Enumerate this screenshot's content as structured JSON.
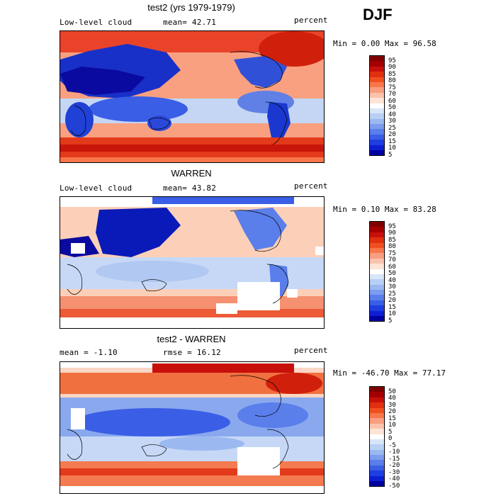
{
  "season": "DJF",
  "panels": [
    {
      "title": "test2 (yrs 1979-1979)",
      "variable": "Low-level cloud",
      "stat_left": "mean=  42.71",
      "units": "percent",
      "minmax": "Min =   0.00 Max =  96.58",
      "colorbar": {
        "colors": [
          "#7f0000",
          "#a50000",
          "#c8100a",
          "#e0300f",
          "#f05020",
          "#f7764a",
          "#f99e80",
          "#fcc3ac",
          "#fde4d6",
          "#ffffff",
          "#d8e6f8",
          "#b9d0f5",
          "#9bb8f0",
          "#7c9cee",
          "#5a7eea",
          "#3a5ee5",
          "#1f3ee0",
          "#0c1fd2",
          "#0000a0"
        ],
        "labels": [
          "95",
          "90",
          "85",
          "80",
          "75",
          "70",
          "60",
          "50",
          "40",
          "30",
          "25",
          "20",
          "15",
          "10",
          "5"
        ]
      }
    },
    {
      "title": "WARREN",
      "variable": "Low-level cloud",
      "stat_left": "mean=  43.82",
      "units": "percent",
      "minmax": "Min =   0.10 Max =  83.28",
      "colorbar": {
        "colors": [
          "#7f0000",
          "#a50000",
          "#c8100a",
          "#e0300f",
          "#f05020",
          "#f7764a",
          "#f99e80",
          "#fcc3ac",
          "#fde4d6",
          "#ffffff",
          "#d8e6f8",
          "#b9d0f5",
          "#9bb8f0",
          "#7c9cee",
          "#5a7eea",
          "#3a5ee5",
          "#1f3ee0",
          "#0c1fd2",
          "#0000a0"
        ],
        "labels": [
          "95",
          "90",
          "85",
          "80",
          "75",
          "70",
          "60",
          "50",
          "40",
          "30",
          "25",
          "20",
          "15",
          "10",
          "5"
        ]
      }
    },
    {
      "title": "test2 - WARREN",
      "stat_left": "mean =  -1.10",
      "stat_mid": "rmse =  16.12",
      "units": "percent",
      "minmax": "Min = -46.70 Max =  77.17",
      "colorbar": {
        "colors": [
          "#7f0000",
          "#a50000",
          "#c8100a",
          "#e0300f",
          "#f05020",
          "#f7764a",
          "#f99e80",
          "#fcc3ac",
          "#fde4d6",
          "#ffffff",
          "#d8e6f8",
          "#b9d0f5",
          "#9bb8f0",
          "#7c9cee",
          "#5a7eea",
          "#3a5ee5",
          "#1f3ee0",
          "#0c1fd2",
          "#0000a0"
        ],
        "labels": [
          "50",
          "40",
          "30",
          "20",
          "15",
          "10",
          "5",
          "0",
          "-5",
          "-10",
          "-15",
          "-20",
          "-30",
          "-40",
          "-50"
        ]
      }
    }
  ]
}
